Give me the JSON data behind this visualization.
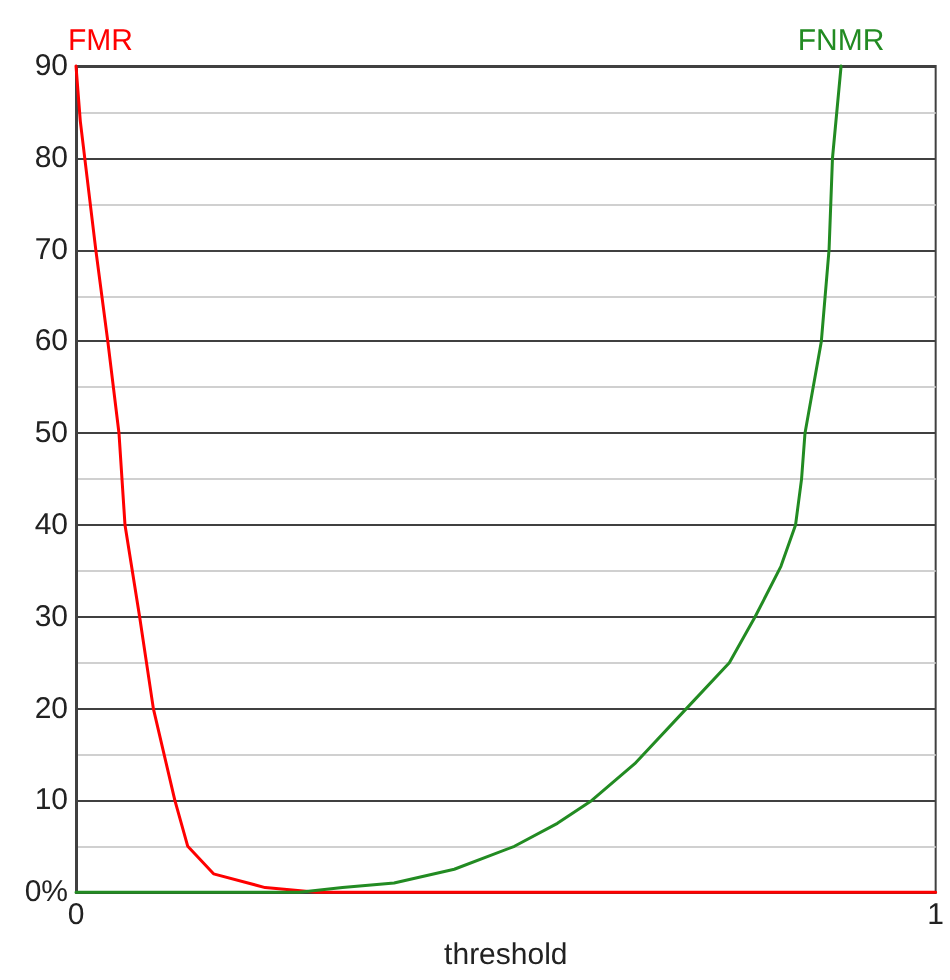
{
  "chart_data": {
    "type": "line",
    "xlabel": "threshold",
    "xlim": [
      0,
      1
    ],
    "xticks": [
      0,
      1
    ],
    "ylim": [
      0,
      90
    ],
    "yticks": [
      {
        "value": 0,
        "label": "0%"
      },
      {
        "value": 5,
        "label": null
      },
      10,
      {
        "value": 15,
        "label": null
      },
      20,
      {
        "value": 25,
        "label": null
      },
      30,
      {
        "value": 35,
        "label": null
      },
      40,
      {
        "value": 45,
        "label": null
      },
      50,
      {
        "value": 55,
        "label": null
      },
      60,
      {
        "value": 65,
        "label": null
      },
      70,
      {
        "value": 75,
        "label": null
      },
      80,
      {
        "value": 85,
        "label": null
      },
      90
    ],
    "grid": "y",
    "marker": "none",
    "line_style": "solid",
    "series": [
      {
        "name": "FMR",
        "color": "#ff0000",
        "x": [
          0,
          0.005,
          0.023,
          0.037,
          0.05,
          0.057,
          0.074,
          0.09,
          0.115,
          0.13,
          0.16,
          0.22,
          0.28,
          1
        ],
        "values": [
          90,
          84,
          70,
          60,
          50,
          40,
          30,
          20,
          10,
          5,
          2,
          0.5,
          0,
          0
        ]
      },
      {
        "name": "FNMR",
        "color": "#228b22",
        "x": [
          0,
          0.26,
          0.31,
          0.37,
          0.44,
          0.51,
          0.56,
          0.6,
          0.65,
          0.71,
          0.76,
          0.79,
          0.82,
          0.837,
          0.844,
          0.848,
          0.867,
          0.876,
          0.88,
          0.89
        ],
        "values": [
          0,
          0,
          0.5,
          1,
          2.5,
          5,
          7.5,
          10,
          14,
          20,
          25,
          30,
          35.5,
          40,
          45,
          50,
          60,
          70,
          80,
          90
        ]
      }
    ]
  }
}
